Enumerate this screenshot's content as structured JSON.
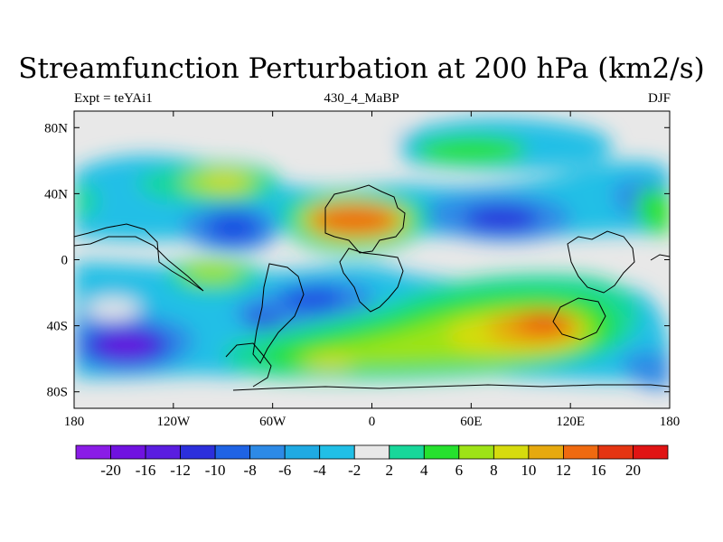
{
  "chart_data": {
    "type": "heatmap",
    "title": "Streamfunction Perturbation at 200 hPa (km2/s)",
    "subtitle_left": "Expt = teYAi1",
    "subtitle_center": "430_4_MaBP",
    "subtitle_right": "DJF",
    "xlim": [
      -180,
      180
    ],
    "ylim": [
      -90,
      90
    ],
    "x_ticks": [
      {
        "value": -180,
        "label": "180"
      },
      {
        "value": -120,
        "label": "120W"
      },
      {
        "value": -60,
        "label": "60W"
      },
      {
        "value": 0,
        "label": "0"
      },
      {
        "value": 60,
        "label": "60E"
      },
      {
        "value": 120,
        "label": "120E"
      },
      {
        "value": 180,
        "label": "180"
      }
    ],
    "y_ticks": [
      {
        "value": 80,
        "label": "80N"
      },
      {
        "value": 40,
        "label": "40N"
      },
      {
        "value": 0,
        "label": "0"
      },
      {
        "value": -40,
        "label": "40S"
      },
      {
        "value": -80,
        "label": "80S"
      }
    ],
    "colorbar_levels": [
      "-20",
      "-16",
      "-12",
      "-10",
      "-8",
      "-6",
      "-4",
      "-2",
      "2",
      "4",
      "6",
      "8",
      "10",
      "12",
      "16",
      "20"
    ],
    "colorbar_colors": [
      "#8a1ce6",
      "#7012e0",
      "#5a1de0",
      "#2c2fdc",
      "#1f63e4",
      "#2d8ae6",
      "#1faae3",
      "#21bfe6",
      "#e8e8e8",
      "#18d79a",
      "#26e12e",
      "#9ee317",
      "#d6db0e",
      "#e6a90f",
      "#ef6a10",
      "#e43512",
      "#e01414"
    ],
    "features": [
      {
        "label": "high",
        "lon": -5,
        "lat": 25,
        "value": 14
      },
      {
        "label": "high",
        "lon": 95,
        "lat": -37,
        "value": 13
      },
      {
        "label": "high",
        "lon": -90,
        "lat": 48,
        "value": 9
      },
      {
        "label": "high",
        "lon": 20,
        "lat": -62,
        "value": 9
      },
      {
        "label": "high",
        "lon": 50,
        "lat": -55,
        "value": 7
      },
      {
        "label": "high",
        "lon": -90,
        "lat": -10,
        "value": 7
      },
      {
        "label": "high",
        "lon": 65,
        "lat": 70,
        "value": 5
      },
      {
        "label": "high",
        "lon": -165,
        "lat": 60,
        "value": 4
      },
      {
        "label": "high",
        "lon": 175,
        "lat": 30,
        "value": 6
      },
      {
        "label": "low",
        "lon": -145,
        "lat": -55,
        "value": -17
      },
      {
        "label": "low",
        "lon": -80,
        "lat": 18,
        "value": -11
      },
      {
        "label": "low",
        "lon": 80,
        "lat": 25,
        "value": -12
      },
      {
        "label": "low",
        "lon": -70,
        "lat": -38,
        "value": -10
      },
      {
        "label": "low",
        "lon": -25,
        "lat": -25,
        "value": -9
      },
      {
        "label": "low",
        "lon": 160,
        "lat": 45,
        "value": -7
      },
      {
        "label": "low",
        "lon": 165,
        "lat": -70,
        "value": -5
      }
    ]
  }
}
